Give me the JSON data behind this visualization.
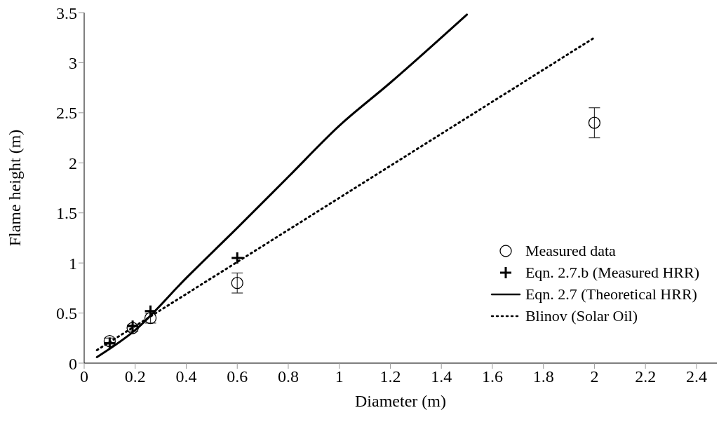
{
  "chart_data": {
    "type": "line",
    "xlabel": "Diameter (m)",
    "ylabel": "Flame height (m)",
    "xlim": [
      0,
      2.48
    ],
    "xticks": [
      0,
      0.2,
      0.4,
      0.6,
      0.8,
      1,
      1.2,
      1.4,
      1.6,
      1.8,
      2,
      2.2,
      2.4
    ],
    "ylim": [
      0,
      3.5
    ],
    "yticks": [
      0,
      0.5,
      1,
      1.5,
      2,
      2.5,
      3,
      3.5
    ],
    "grid": false,
    "legend": "bottom right",
    "series": [
      {
        "name": "Measured data",
        "type": "scatter",
        "marker": "circle",
        "color": "#000000",
        "x": [
          0.1,
          0.19,
          0.26,
          0.6,
          2
        ],
        "values": [
          0.22,
          0.35,
          0.45,
          0.8,
          2.4
        ],
        "errors": [
          0.03,
          0.03,
          0.05,
          0.1,
          0.15
        ]
      },
      {
        "name": "Eqn. 2.7.b (Measured HRR)",
        "type": "scatter",
        "marker": "cross",
        "color": "#000000",
        "x": [
          0.1,
          0.19,
          0.26,
          0.6
        ],
        "values": [
          0.2,
          0.37,
          0.52,
          1.05
        ]
      },
      {
        "name": "Eqn. 2.7 (Theoretical HRR)",
        "marker": "none",
        "line_style": "solid",
        "color": "#000000",
        "x": [
          0.05,
          0.2,
          0.4,
          0.6,
          0.8,
          1.0,
          1.2,
          1.5
        ],
        "values": [
          0.06,
          0.33,
          0.85,
          1.35,
          1.86,
          2.37,
          2.8,
          3.48
        ]
      },
      {
        "name": "Blinov (Solar Oil)",
        "marker": "none",
        "line_style": "dotted",
        "color": "#000000",
        "x": [
          0.05,
          2
        ],
        "values": [
          0.13,
          3.25
        ]
      }
    ]
  }
}
